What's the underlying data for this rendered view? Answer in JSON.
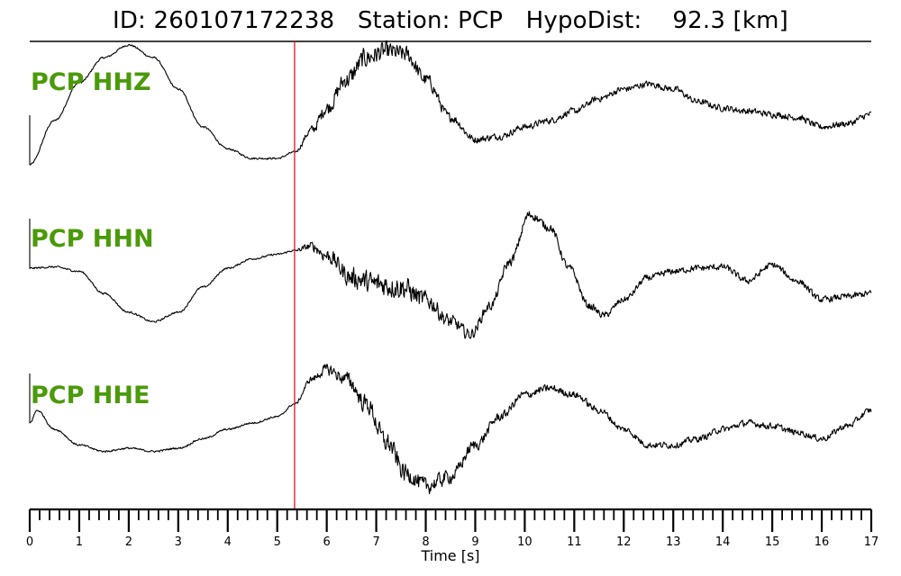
{
  "title": {
    "id_label": "ID:",
    "id_value": "260107172238",
    "station_label": "Station:",
    "station_value": "PCP",
    "hypodist_label": "HypoDist:",
    "hypodist_value": "92.3",
    "hypodist_unit": "[km]"
  },
  "chart_data": {
    "type": "line",
    "xlabel": "Time [s]",
    "xlim": [
      0,
      17
    ],
    "x_ticks": [
      0,
      1,
      2,
      3,
      4,
      5,
      6,
      7,
      8,
      9,
      10,
      11,
      12,
      13,
      14,
      15,
      16,
      17
    ],
    "minor_tick_step": 0.2,
    "pick_time": 5.35,
    "pick_color": "#e8121c",
    "label_color": "#4a9a0a",
    "trace_color": "#000000",
    "series": [
      {
        "name": "PCP HHZ",
        "x": [
          0,
          0.5,
          1,
          1.5,
          2,
          2.5,
          3,
          3.5,
          4,
          4.5,
          5,
          5.35,
          5.7,
          6,
          6.4,
          6.8,
          7.2,
          7.6,
          8,
          8.5,
          9,
          9.5,
          10,
          10.5,
          11,
          11.5,
          12,
          12.5,
          13,
          13.5,
          14,
          14.5,
          15,
          15.5,
          16,
          16.5,
          17
        ],
        "y": [
          -0.9,
          -0.2,
          0.4,
          0.8,
          1.0,
          0.8,
          0.3,
          -0.3,
          -0.65,
          -0.8,
          -0.8,
          -0.7,
          -0.35,
          0.0,
          0.45,
          0.8,
          0.9,
          0.85,
          0.45,
          -0.15,
          -0.5,
          -0.45,
          -0.3,
          -0.2,
          -0.05,
          0.15,
          0.3,
          0.38,
          0.3,
          0.1,
          0.0,
          -0.05,
          -0.1,
          -0.15,
          -0.3,
          -0.25,
          -0.1
        ],
        "noise": [
          0.02,
          0.02,
          0.02,
          0.02,
          0.02,
          0.02,
          0.02,
          0.02,
          0.02,
          0.02,
          0.02,
          0.02,
          0.1,
          0.15,
          0.2,
          0.22,
          0.2,
          0.18,
          0.15,
          0.1,
          0.08,
          0.07,
          0.07,
          0.07,
          0.07,
          0.07,
          0.07,
          0.07,
          0.07,
          0.07,
          0.07,
          0.07,
          0.07,
          0.07,
          0.07,
          0.07,
          0.07
        ]
      },
      {
        "name": "PCP HHN",
        "x": [
          0,
          0.5,
          1,
          1.5,
          2,
          2.5,
          3,
          3.5,
          4,
          4.5,
          5,
          5.35,
          5.7,
          6,
          6.5,
          7,
          7.5,
          8,
          8.5,
          8.9,
          9.3,
          9.7,
          10.1,
          10.5,
          10.9,
          11.3,
          11.6,
          12,
          12.5,
          13,
          13.5,
          14,
          14.5,
          15,
          15.5,
          16,
          16.5,
          17
        ],
        "y": [
          0.1,
          0.12,
          0.05,
          -0.3,
          -0.6,
          -0.75,
          -0.6,
          -0.2,
          0.1,
          0.25,
          0.32,
          0.38,
          0.45,
          0.3,
          -0.05,
          -0.15,
          -0.2,
          -0.4,
          -0.75,
          -0.95,
          -0.5,
          0.2,
          0.95,
          0.75,
          0.1,
          -0.5,
          -0.65,
          -0.4,
          -0.05,
          0.05,
          0.1,
          0.12,
          -0.1,
          0.15,
          -0.1,
          -0.4,
          -0.35,
          -0.3
        ],
        "noise": [
          0.02,
          0.02,
          0.02,
          0.02,
          0.02,
          0.02,
          0.02,
          0.02,
          0.02,
          0.02,
          0.02,
          0.02,
          0.1,
          0.15,
          0.22,
          0.25,
          0.25,
          0.2,
          0.15,
          0.12,
          0.1,
          0.1,
          0.1,
          0.09,
          0.08,
          0.08,
          0.07,
          0.07,
          0.07,
          0.07,
          0.07,
          0.07,
          0.07,
          0.07,
          0.07,
          0.07,
          0.07,
          0.07
        ]
      },
      {
        "name": "PCP HHE",
        "x": [
          0,
          0.15,
          0.5,
          1,
          1.5,
          2,
          2.5,
          3,
          3.5,
          4,
          4.5,
          5,
          5.35,
          5.7,
          6,
          6.4,
          6.8,
          7.2,
          7.6,
          8,
          8.5,
          9,
          9.5,
          10,
          10.5,
          11,
          11.5,
          12,
          12.5,
          13,
          13.5,
          14,
          14.5,
          15,
          15.5,
          16,
          16.5,
          17
        ],
        "y": [
          0.0,
          0.2,
          -0.1,
          -0.35,
          -0.45,
          -0.4,
          -0.45,
          -0.4,
          -0.25,
          -0.1,
          0.0,
          0.1,
          0.3,
          0.7,
          0.85,
          0.7,
          0.3,
          -0.3,
          -0.8,
          -1.0,
          -0.85,
          -0.35,
          0.1,
          0.45,
          0.55,
          0.45,
          0.2,
          -0.1,
          -0.35,
          -0.35,
          -0.25,
          -0.1,
          0.0,
          -0.05,
          -0.15,
          -0.25,
          -0.05,
          0.2
        ],
        "noise": [
          0.02,
          0.02,
          0.02,
          0.02,
          0.02,
          0.02,
          0.02,
          0.02,
          0.02,
          0.02,
          0.02,
          0.02,
          0.02,
          0.07,
          0.12,
          0.15,
          0.2,
          0.22,
          0.2,
          0.18,
          0.15,
          0.12,
          0.1,
          0.09,
          0.08,
          0.08,
          0.07,
          0.07,
          0.07,
          0.07,
          0.07,
          0.07,
          0.07,
          0.07,
          0.07,
          0.07,
          0.07,
          0.07
        ]
      }
    ]
  }
}
